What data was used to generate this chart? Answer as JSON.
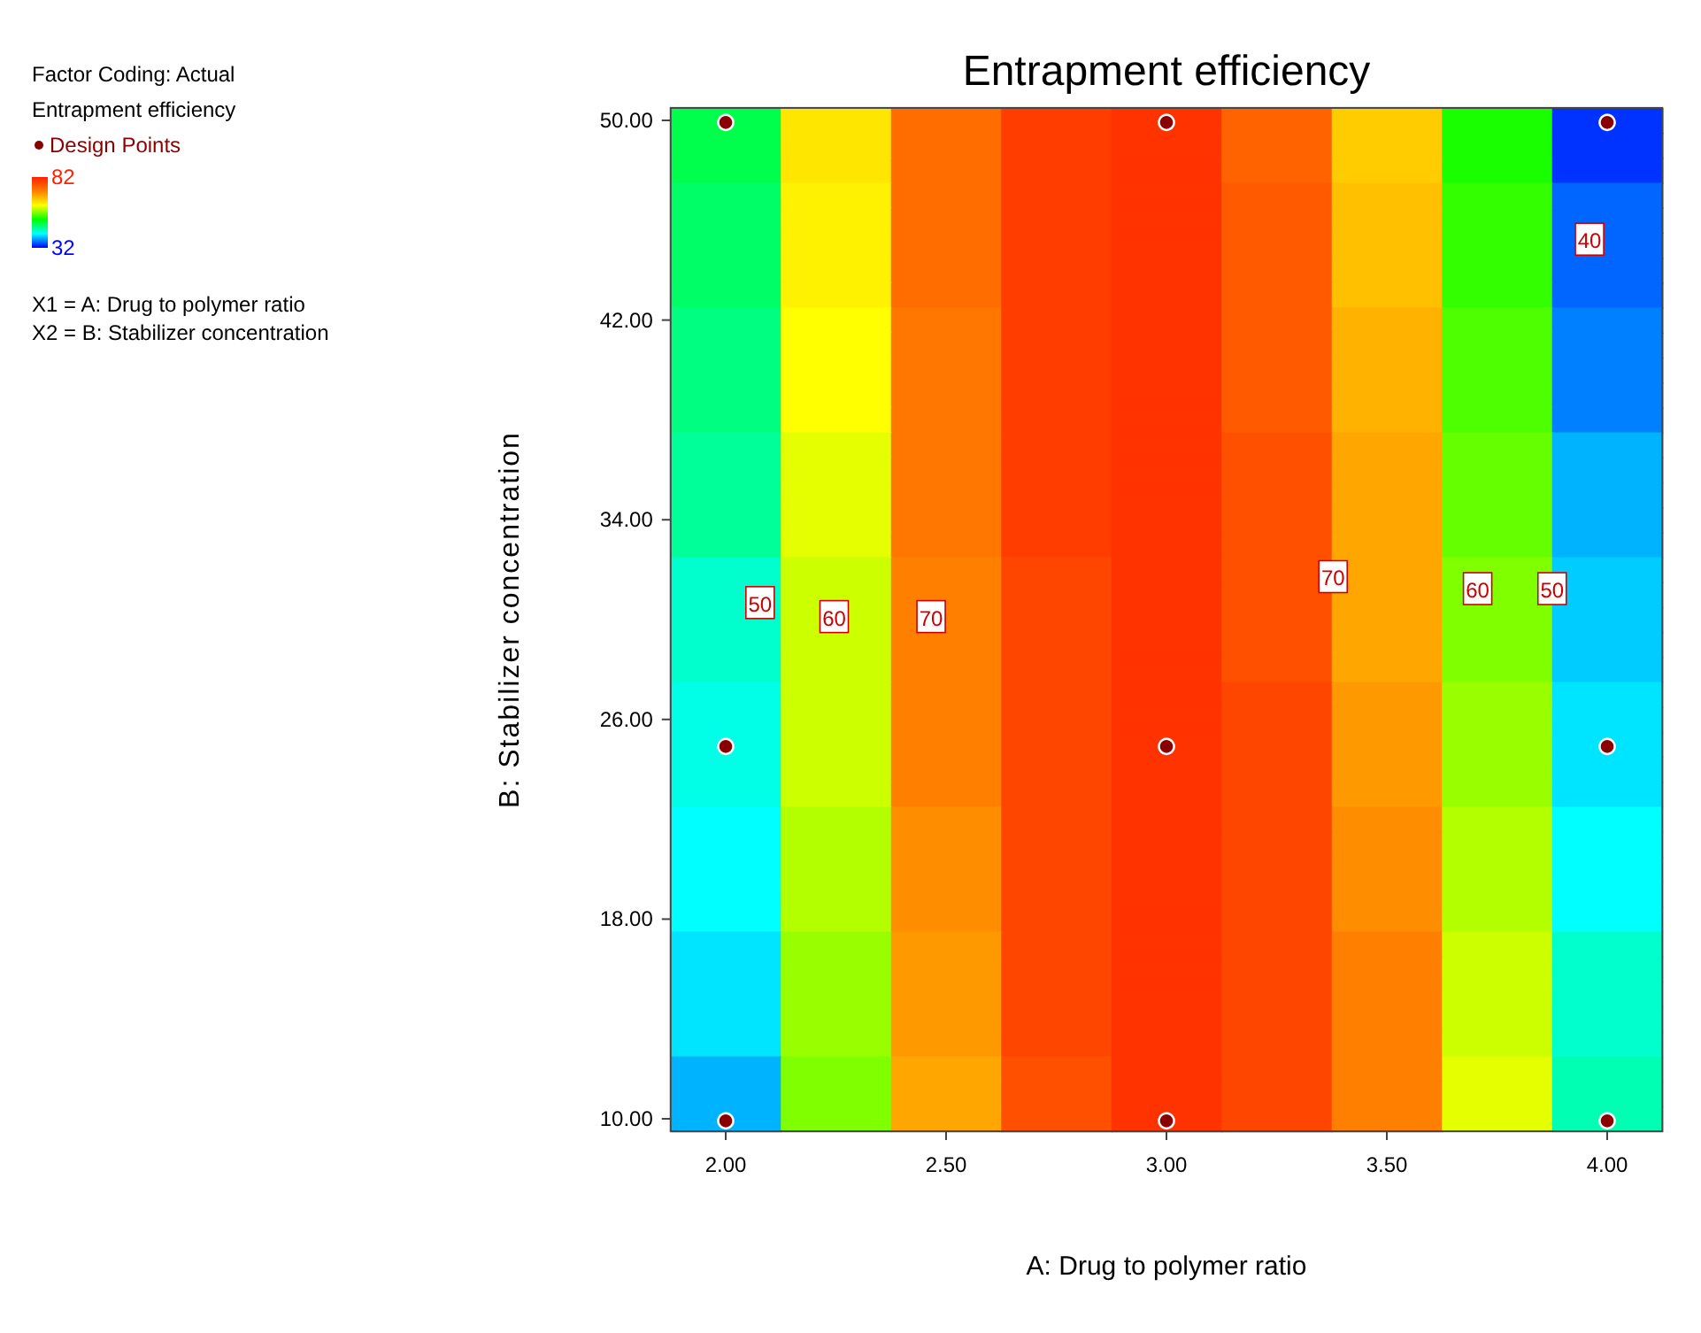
{
  "chart_data": {
    "type": "heatmap",
    "title": "Entrapment efficiency",
    "xlabel": "A: Drug to polymer ratio",
    "ylabel": "B: Stabilizer concentration",
    "clabel": "Entrapment efficiency",
    "clim": [
      32,
      82
    ],
    "cticks": [
      82,
      32
    ],
    "categories": [
      "2.00",
      null,
      "2.50",
      null,
      "3.00",
      null,
      "3.50",
      null,
      "4.00"
    ],
    "y_categories": [
      "50.00",
      null,
      null,
      null,
      null,
      null,
      null,
      null,
      "42.00",
      null,
      null,
      null,
      null,
      null,
      null,
      null,
      "34.00",
      null,
      null,
      null,
      null,
      null,
      null,
      null,
      "26.00",
      null,
      null,
      null,
      null,
      null,
      null,
      null,
      "18.00",
      null,
      null,
      null,
      null,
      null,
      null,
      null,
      "10.00"
    ],
    "cells": [
      [
        49,
        64,
        74,
        79,
        80,
        75,
        66,
        53,
        34
      ],
      [
        49,
        64,
        74,
        79,
        80,
        75,
        66,
        53,
        34
      ],
      [
        49,
        64,
        74,
        79,
        80,
        75,
        66,
        53,
        34
      ],
      [
        48,
        63,
        74,
        79,
        80,
        76,
        67,
        54,
        36
      ],
      [
        48,
        63,
        74,
        79,
        80,
        76,
        67,
        54,
        36
      ],
      [
        48,
        63,
        74,
        79,
        80,
        76,
        67,
        54,
        36
      ],
      [
        48,
        63,
        74,
        79,
        80,
        76,
        67,
        54,
        36
      ],
      [
        48,
        63,
        74,
        79,
        80,
        76,
        67,
        54,
        36
      ],
      [
        47,
        62,
        73,
        79,
        80,
        76,
        68,
        55,
        37
      ],
      [
        47,
        62,
        73,
        79,
        80,
        76,
        68,
        55,
        37
      ],
      [
        47,
        62,
        73,
        79,
        80,
        76,
        68,
        55,
        37
      ],
      [
        47,
        62,
        73,
        79,
        80,
        76,
        68,
        55,
        37
      ],
      [
        47,
        62,
        73,
        79,
        80,
        76,
        68,
        55,
        37
      ],
      [
        46,
        61,
        73,
        79,
        80,
        77,
        69,
        56,
        39
      ],
      [
        46,
        61,
        73,
        79,
        80,
        77,
        69,
        56,
        39
      ],
      [
        46,
        61,
        73,
        79,
        80,
        77,
        69,
        56,
        39
      ],
      [
        46,
        61,
        73,
        79,
        80,
        77,
        69,
        56,
        39
      ],
      [
        46,
        61,
        73,
        79,
        80,
        77,
        69,
        56,
        39
      ],
      [
        44,
        60,
        72,
        78,
        80,
        77,
        69,
        57,
        40
      ],
      [
        44,
        60,
        72,
        78,
        80,
        77,
        69,
        57,
        40
      ],
      [
        44,
        60,
        72,
        78,
        80,
        77,
        69,
        57,
        40
      ],
      [
        44,
        60,
        72,
        78,
        80,
        77,
        69,
        57,
        40
      ],
      [
        44,
        60,
        72,
        78,
        80,
        77,
        69,
        57,
        40
      ],
      [
        43,
        60,
        72,
        78,
        80,
        78,
        70,
        58,
        41
      ],
      [
        43,
        60,
        72,
        78,
        80,
        78,
        70,
        58,
        41
      ],
      [
        43,
        60,
        72,
        78,
        80,
        78,
        70,
        58,
        41
      ],
      [
        43,
        60,
        72,
        78,
        80,
        78,
        70,
        58,
        41
      ],
      [
        43,
        60,
        72,
        78,
        80,
        78,
        70,
        58,
        41
      ],
      [
        42,
        59,
        71,
        78,
        80,
        78,
        71,
        59,
        42
      ],
      [
        42,
        59,
        71,
        78,
        80,
        78,
        71,
        59,
        42
      ],
      [
        42,
        59,
        71,
        78,
        80,
        78,
        71,
        59,
        42
      ],
      [
        42,
        59,
        71,
        78,
        80,
        78,
        71,
        59,
        42
      ],
      [
        42,
        59,
        71,
        78,
        80,
        78,
        71,
        59,
        42
      ],
      [
        41,
        58,
        70,
        78,
        80,
        78,
        72,
        60,
        44
      ],
      [
        41,
        58,
        70,
        78,
        80,
        78,
        72,
        60,
        44
      ],
      [
        41,
        58,
        70,
        78,
        80,
        78,
        72,
        60,
        44
      ],
      [
        41,
        58,
        70,
        78,
        80,
        78,
        72,
        60,
        44
      ],
      [
        41,
        58,
        70,
        78,
        80,
        78,
        72,
        60,
        44
      ],
      [
        39,
        57,
        69,
        77,
        80,
        78,
        72,
        61,
        45
      ],
      [
        39,
        57,
        69,
        77,
        80,
        78,
        72,
        61,
        45
      ],
      [
        39,
        57,
        69,
        77,
        80,
        78,
        72,
        61,
        45
      ]
    ],
    "cell_labels": [
      [
        "●",
        null,
        null,
        null,
        "●",
        null,
        null,
        null,
        "●"
      ],
      [
        null,
        null,
        null,
        null,
        null,
        null,
        null,
        null,
        null
      ],
      [
        null,
        null,
        null,
        null,
        null,
        null,
        null,
        null,
        null
      ],
      [
        null,
        null,
        null,
        null,
        null,
        null,
        null,
        null,
        null
      ],
      [
        null,
        null,
        null,
        null,
        null,
        null,
        null,
        null,
        null
      ],
      [
        null,
        null,
        null,
        null,
        null,
        null,
        null,
        null,
        null
      ],
      [
        null,
        null,
        null,
        null,
        null,
        null,
        null,
        null,
        null
      ],
      [
        null,
        null,
        null,
        null,
        null,
        null,
        null,
        null,
        null
      ],
      [
        null,
        null,
        null,
        null,
        null,
        null,
        null,
        null,
        null
      ],
      [
        null,
        null,
        null,
        null,
        null,
        null,
        null,
        null,
        null
      ],
      [
        null,
        null,
        null,
        null,
        null,
        null,
        null,
        null,
        null
      ],
      [
        null,
        null,
        null,
        null,
        null,
        null,
        null,
        null,
        null
      ],
      [
        null,
        null,
        null,
        null,
        null,
        null,
        null,
        null,
        null
      ],
      [
        null,
        null,
        null,
        null,
        null,
        null,
        null,
        null,
        null
      ],
      [
        null,
        null,
        null,
        null,
        null,
        null,
        null,
        null,
        null
      ],
      [
        null,
        null,
        null,
        null,
        null,
        null,
        null,
        null,
        null
      ],
      [
        null,
        null,
        null,
        null,
        null,
        null,
        null,
        null,
        null
      ],
      [
        null,
        null,
        null,
        null,
        null,
        null,
        null,
        null,
        null
      ],
      [
        null,
        null,
        null,
        null,
        null,
        null,
        null,
        null,
        null
      ],
      [
        null,
        null,
        null,
        null,
        null,
        null,
        null,
        null,
        null
      ],
      [
        null,
        null,
        null,
        null,
        null,
        null,
        null,
        null,
        null
      ],
      [
        null,
        null,
        null,
        null,
        null,
        null,
        null,
        null,
        null
      ],
      [
        null,
        null,
        null,
        null,
        null,
        null,
        null,
        null,
        null
      ],
      [
        null,
        null,
        null,
        null,
        null,
        null,
        null,
        null,
        null
      ],
      [
        null,
        null,
        null,
        null,
        null,
        null,
        null,
        null,
        null
      ],
      [
        "●",
        null,
        null,
        null,
        "●",
        null,
        null,
        null,
        "●"
      ],
      [
        null,
        null,
        null,
        null,
        null,
        null,
        null,
        null,
        null
      ],
      [
        null,
        null,
        null,
        null,
        null,
        null,
        null,
        null,
        null
      ],
      [
        null,
        null,
        null,
        null,
        null,
        null,
        null,
        null,
        null
      ],
      [
        null,
        null,
        null,
        null,
        null,
        null,
        null,
        null,
        null
      ],
      [
        null,
        null,
        null,
        null,
        null,
        null,
        null,
        null,
        null
      ],
      [
        null,
        null,
        null,
        null,
        null,
        null,
        null,
        null,
        null
      ],
      [
        null,
        null,
        null,
        null,
        null,
        null,
        null,
        null,
        null
      ],
      [
        null,
        null,
        null,
        null,
        null,
        null,
        null,
        null,
        null
      ],
      [
        null,
        null,
        null,
        null,
        null,
        null,
        null,
        null,
        null
      ],
      [
        null,
        null,
        null,
        null,
        null,
        null,
        null,
        null,
        null
      ],
      [
        null,
        null,
        null,
        null,
        null,
        null,
        null,
        null,
        null
      ],
      [
        null,
        null,
        null,
        null,
        null,
        null,
        null,
        null,
        null
      ],
      [
        null,
        null,
        null,
        null,
        null,
        null,
        null,
        null,
        null
      ],
      [
        null,
        null,
        null,
        null,
        null,
        null,
        null,
        null,
        null
      ],
      [
        "●",
        null,
        null,
        null,
        "●",
        null,
        null,
        null,
        "●"
      ]
    ],
    "annotations": [
      "Factor Coding: Actual",
      "Design Points",
      "X1 = A: Drug to polymer ratio",
      "X2 = B: Stabilizer concentration",
      "50",
      "60",
      "70",
      "70",
      "60",
      "50",
      "40"
    ]
  }
}
